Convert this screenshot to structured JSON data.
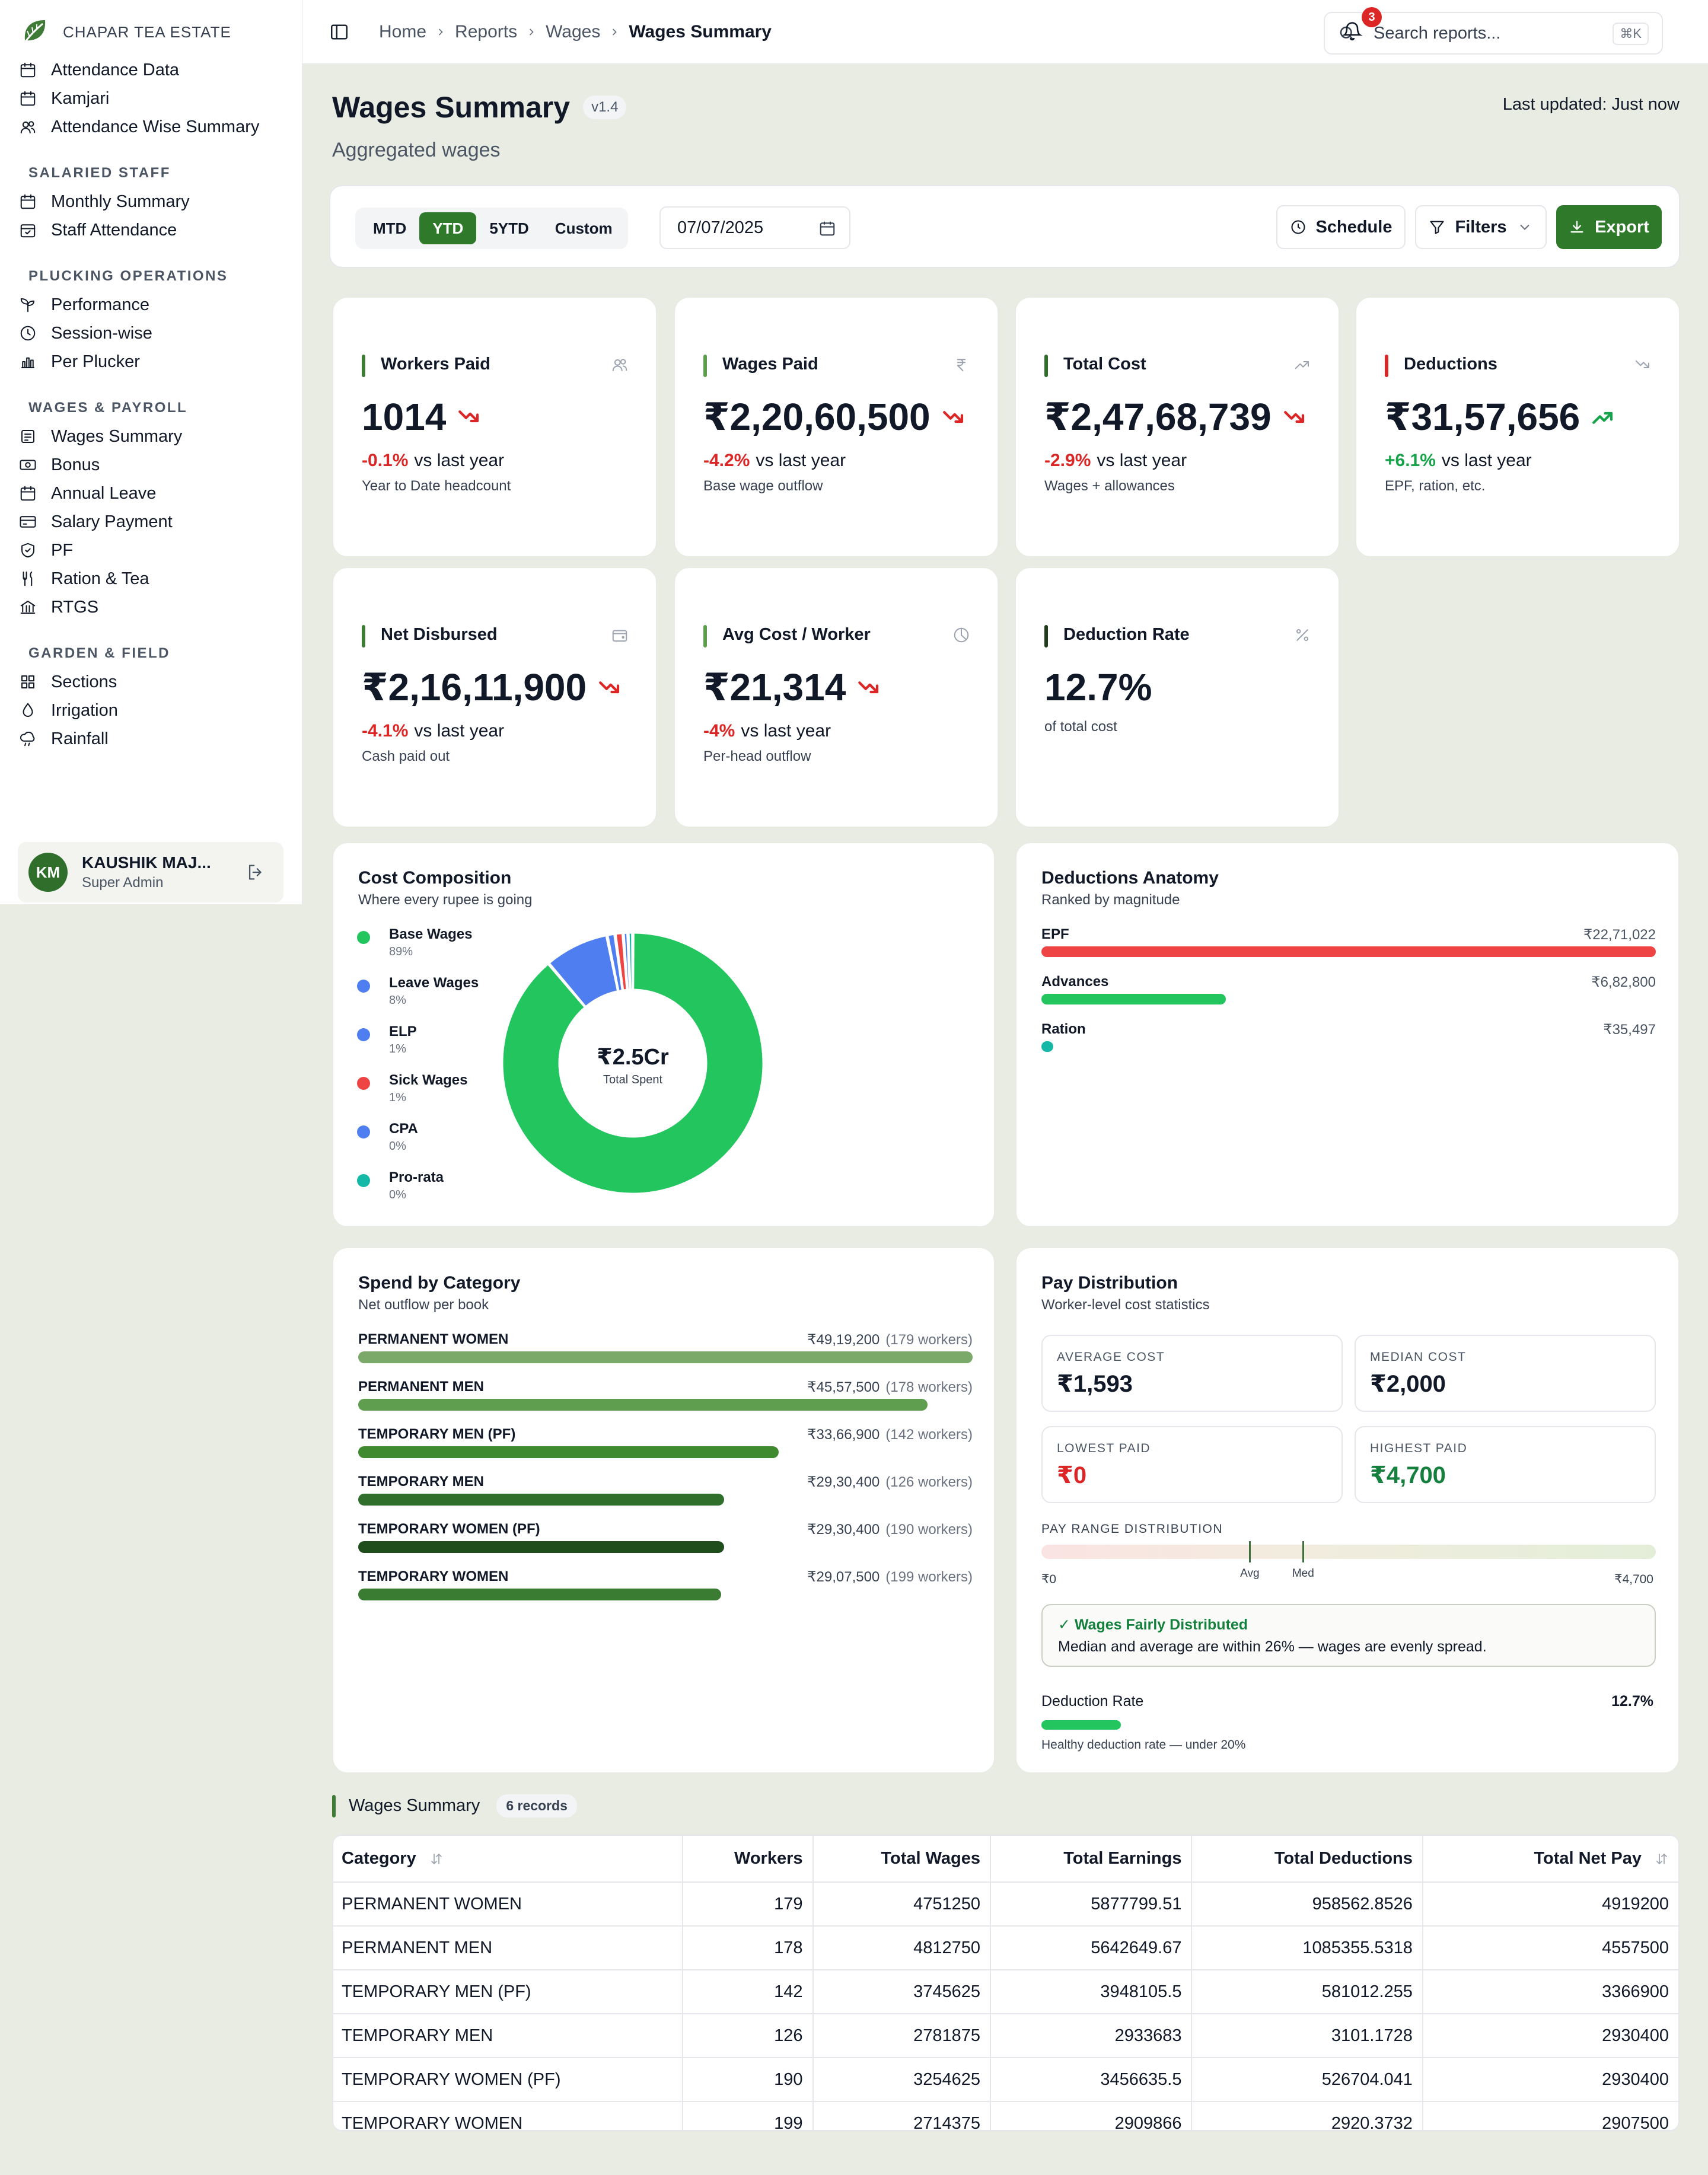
{
  "sidebar": {
    "brand": "CHAPAR TEA ESTATE",
    "top_items": [
      {
        "label": "Attendance Data",
        "icon": "calendar-icon"
      },
      {
        "label": "Kamjari",
        "icon": "calendar-icon"
      },
      {
        "label": "Attendance Wise Summary",
        "icon": "users-icon"
      }
    ],
    "groups": [
      {
        "title": "SALARIED STAFF",
        "items": [
          {
            "label": "Monthly Summary",
            "icon": "calendar-icon"
          },
          {
            "label": "Staff Attendance",
            "icon": "calendar-check-icon"
          }
        ]
      },
      {
        "title": "PLUCKING OPERATIONS",
        "items": [
          {
            "label": "Performance",
            "icon": "sprout-icon"
          },
          {
            "label": "Session-wise",
            "icon": "clock-icon"
          },
          {
            "label": "Per Plucker",
            "icon": "bar-chart-icon"
          }
        ]
      },
      {
        "title": "WAGES & PAYROLL",
        "items": [
          {
            "label": "Wages Summary",
            "icon": "receipt-icon"
          },
          {
            "label": "Bonus",
            "icon": "banknote-icon"
          },
          {
            "label": "Annual Leave",
            "icon": "calendar-icon"
          },
          {
            "label": "Salary Payment",
            "icon": "credit-card-icon"
          },
          {
            "label": "PF",
            "icon": "shield-icon"
          },
          {
            "label": "Ration & Tea",
            "icon": "utensils-icon"
          },
          {
            "label": "RTGS",
            "icon": "bank-icon"
          }
        ]
      },
      {
        "title": "GARDEN & FIELD",
        "items": [
          {
            "label": "Sections",
            "icon": "grid-icon"
          },
          {
            "label": "Irrigation",
            "icon": "droplet-icon"
          },
          {
            "label": "Rainfall",
            "icon": "cloud-rain-icon"
          }
        ]
      }
    ],
    "user": {
      "initials": "KM",
      "name": "KAUSHIK MAJ...",
      "role": "Super Admin"
    }
  },
  "topbar": {
    "breadcrumb": [
      "Home",
      "Reports",
      "Wages",
      "Wages Summary"
    ],
    "search_placeholder": "Search reports...",
    "search_shortcut": "⌘K",
    "notifications": "3"
  },
  "header": {
    "title": "Wages Summary",
    "version": "v1.4",
    "subtitle": "Aggregated wages",
    "last_updated": "Last updated: Just now"
  },
  "toolbar": {
    "periods": [
      "MTD",
      "YTD",
      "5YTD",
      "Custom"
    ],
    "active_period": "YTD",
    "date": "07/07/2025",
    "schedule_label": "Schedule",
    "filters_label": "Filters",
    "export_label": "Export"
  },
  "kpis": [
    {
      "label": "Workers Paid",
      "value": "1014",
      "delta": "-0.1%",
      "delta_text": "vs last year",
      "note": "Year to Date headcount",
      "trend": "down",
      "accent": "#3f7a37",
      "icon": "users-icon"
    },
    {
      "label": "Wages Paid",
      "value": "₹2,20,60,500",
      "delta": "-4.2%",
      "delta_text": "vs last year",
      "note": "Base wage outflow",
      "trend": "down",
      "accent": "#5e9e4e",
      "icon": "rupee-icon"
    },
    {
      "label": "Total Cost",
      "value": "₹2,47,68,739",
      "delta": "-2.9%",
      "delta_text": "vs last year",
      "note": "Wages + allowances",
      "trend": "down",
      "accent": "#2f6f2b",
      "icon": "trending-up-icon"
    },
    {
      "label": "Deductions",
      "value": "₹31,57,656",
      "delta": "+6.1%",
      "delta_text": "vs last year",
      "note": "EPF, ration, etc.",
      "trend": "up",
      "accent": "#dc2626",
      "icon": "trending-down-icon"
    },
    {
      "label": "Net Disbursed",
      "value": "₹2,16,11,900",
      "delta": "-4.1%",
      "delta_text": "vs last year",
      "note": "Cash paid out",
      "trend": "down",
      "accent": "#3f7a37",
      "icon": "wallet-icon"
    },
    {
      "label": "Avg Cost / Worker",
      "value": "₹21,314",
      "delta": "-4%",
      "delta_text": "vs last year",
      "note": "Per-head outflow",
      "trend": "down",
      "accent": "#5e9e4e",
      "icon": "pie-icon"
    },
    {
      "label": "Deduction Rate",
      "value": "12.7%",
      "delta": "",
      "delta_text": "",
      "note": "of total cost",
      "trend": "none",
      "accent": "#1f3d1b",
      "icon": "percent-icon"
    }
  ],
  "cost_composition": {
    "title": "Cost Composition",
    "subtitle": "Where every rupee is going",
    "center_value": "₹2.5Cr",
    "center_label": "Total Spent"
  },
  "chart_data": {
    "type": "pie",
    "categories": [
      "Base Wages",
      "Leave Wages",
      "ELP",
      "Sick Wages",
      "CPA",
      "Pro-rata"
    ],
    "values": [
      89,
      8,
      1,
      1,
      0,
      0
    ],
    "labels": [
      "89%",
      "8%",
      "1%",
      "1%",
      "0%",
      "0%"
    ],
    "colors": [
      "#22c55e",
      "#4f7ef0",
      "#4f7ef0",
      "#ef4444",
      "#4f7ef0",
      "#14b8a6"
    ]
  },
  "deductions_anatomy": {
    "title": "Deductions Anatomy",
    "subtitle": "Ranked by magnitude",
    "items": [
      {
        "name": "EPF",
        "value": "₹22,71,022",
        "amount": 2271022,
        "color": "#ef4444"
      },
      {
        "name": "Advances",
        "value": "₹6,82,800",
        "amount": 682800,
        "color": "#22c55e"
      },
      {
        "name": "Ration",
        "value": "₹35,497",
        "amount": 35497,
        "color": "#14b8a6"
      }
    ]
  },
  "spend_by_category": {
    "title": "Spend by Category",
    "subtitle": "Net outflow per book",
    "items": [
      {
        "name": "PERMANENT WOMEN",
        "value": "₹49,19,200",
        "workers": "(179 workers)",
        "amount": 4919200,
        "color": "#7aa96a"
      },
      {
        "name": "PERMANENT MEN",
        "value": "₹45,57,500",
        "workers": "(178 workers)",
        "amount": 4557500,
        "color": "#5e9e4e"
      },
      {
        "name": "TEMPORARY MEN (PF)",
        "value": "₹33,66,900",
        "workers": "(142 workers)",
        "amount": 3366900,
        "color": "#3f8a2f"
      },
      {
        "name": "TEMPORARY MEN",
        "value": "₹29,30,400",
        "workers": "(126 workers)",
        "amount": 2930400,
        "color": "#2f6f2b"
      },
      {
        "name": "TEMPORARY WOMEN (PF)",
        "value": "₹29,30,400",
        "workers": "(190 workers)",
        "amount": 2930400,
        "color": "#1f4d1c"
      },
      {
        "name": "TEMPORARY WOMEN",
        "value": "₹29,07,500",
        "workers": "(199 workers)",
        "amount": 2907500,
        "color": "#3a7d32"
      }
    ]
  },
  "pay_distribution": {
    "title": "Pay Distribution",
    "subtitle": "Worker-level cost statistics",
    "stats": [
      {
        "label": "AVERAGE COST",
        "value": "₹1,593",
        "color": "#111827"
      },
      {
        "label": "MEDIAN COST",
        "value": "₹2,000",
        "color": "#111827"
      },
      {
        "label": "LOWEST PAID",
        "value": "₹0",
        "color": "#dc2626"
      },
      {
        "label": "HIGHEST PAID",
        "value": "₹4,700",
        "color": "#15803d"
      }
    ],
    "range_label": "PAY RANGE DISTRIBUTION",
    "range_min": "₹0",
    "range_max": "₹4,700",
    "min_amount": 0,
    "max_amount": 4700,
    "avg_amount": 1593,
    "median_amount": 2000,
    "avg_label": "Avg",
    "median_label": "Med",
    "fair_title": "✓ Wages Fairly Distributed",
    "fair_desc": "Median and average are within 26% — wages are evenly spread.",
    "deduction_rate_label": "Deduction Rate",
    "deduction_rate_value": "12.7%",
    "deduction_rate_note": "Healthy deduction rate — under 20%"
  },
  "table": {
    "title": "Wages Summary",
    "count": "6 records",
    "columns": [
      "Category",
      "Workers",
      "Total Wages",
      "Total Earnings",
      "Total Deductions",
      "Total Net Pay"
    ],
    "rows": [
      [
        "PERMANENT WOMEN",
        "179",
        "4751250",
        "5877799.51",
        "958562.8526",
        "4919200"
      ],
      [
        "PERMANENT MEN",
        "178",
        "4812750",
        "5642649.67",
        "1085355.5318",
        "4557500"
      ],
      [
        "TEMPORARY MEN (PF)",
        "142",
        "3745625",
        "3948105.5",
        "581012.255",
        "3366900"
      ],
      [
        "TEMPORARY MEN",
        "126",
        "2781875",
        "2933683",
        "3101.1728",
        "2930400"
      ],
      [
        "TEMPORARY WOMEN (PF)",
        "190",
        "3254625",
        "3456635.5",
        "526704.041",
        "2930400"
      ],
      [
        "TEMPORARY WOMEN",
        "199",
        "2714375",
        "2909866",
        "2920.3732",
        "2907500"
      ]
    ]
  }
}
